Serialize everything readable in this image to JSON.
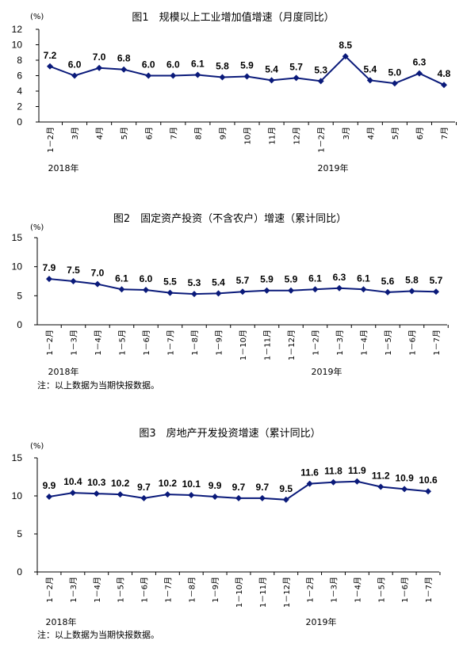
{
  "chart_data": [
    {
      "type": "line",
      "title": "图1　规模以上工业增加值增速（月度同比）",
      "unit": "(%)",
      "ylim": [
        0,
        12
      ],
      "yticks": [
        0,
        2,
        4,
        6,
        8,
        10,
        12
      ],
      "categories": [
        "1-2月",
        "3月",
        "4月",
        "5月",
        "6月",
        "7月",
        "8月",
        "9月",
        "10月",
        "11月",
        "12月",
        "1-2月",
        "3月",
        "4月",
        "5月",
        "6月",
        "7月"
      ],
      "years": [
        "2018年",
        "2019年"
      ],
      "series": [
        {
          "values": [
            7.2,
            6.0,
            7.0,
            6.8,
            6.0,
            6.0,
            6.1,
            5.8,
            5.9,
            5.4,
            5.7,
            5.3,
            8.5,
            5.4,
            5.0,
            6.3,
            4.8
          ]
        }
      ],
      "data_labels": [
        "7.2",
        "6.0",
        "7.0",
        "6.8",
        "6.0",
        "6.0",
        "6.1",
        "5.8",
        "5.9",
        "5.4",
        "5.7",
        "5.3",
        "8.5",
        "5.4",
        "5.0",
        "6.3",
        "4.8"
      ],
      "note": "",
      "grid": false
    },
    {
      "type": "line",
      "title": "图2　固定资产投资（不含农户）增速（累计同比）",
      "unit": "(%)",
      "ylim": [
        0,
        15
      ],
      "yticks": [
        0,
        5,
        10,
        15
      ],
      "categories": [
        "1-2月",
        "1-3月",
        "1-4月",
        "1-5月",
        "1-6月",
        "1-7月",
        "1-8月",
        "1-9月",
        "1-10月",
        "1-11月",
        "1-12月",
        "1-2月",
        "1-3月",
        "1-4月",
        "1-5月",
        "1-6月",
        "1-7月"
      ],
      "years": [
        "2018年",
        "2019年"
      ],
      "series": [
        {
          "values": [
            7.9,
            7.5,
            7.0,
            6.1,
            6.0,
            5.5,
            5.3,
            5.4,
            5.7,
            5.9,
            5.9,
            6.1,
            6.3,
            6.1,
            5.6,
            5.8,
            5.7
          ]
        }
      ],
      "data_labels": [
        "7.9",
        "7.5",
        "7.0",
        "6.1",
        "6.0",
        "5.5",
        "5.3",
        "5.4",
        "5.7",
        "5.9",
        "5.9",
        "6.1",
        "6.3",
        "6.1",
        "5.6",
        "5.8",
        "5.7"
      ],
      "note": "注：以上数据为当期快报数据。",
      "grid": false
    },
    {
      "type": "line",
      "title": "图3　房地产开发投资增速（累计同比）",
      "unit": "(%)",
      "ylim": [
        0,
        15
      ],
      "yticks": [
        0,
        5,
        10,
        15
      ],
      "categories": [
        "1-2月",
        "1-3月",
        "1-4月",
        "1-5月",
        "1-6月",
        "1-7月",
        "1-8月",
        "1-9月",
        "1-10月",
        "1-11月",
        "1-12月",
        "1-2月",
        "1-3月",
        "1-4月",
        "1-5月",
        "1-6月",
        "1-7月"
      ],
      "years": [
        "2018年",
        "2019年"
      ],
      "series": [
        {
          "values": [
            9.9,
            10.4,
            10.3,
            10.2,
            9.7,
            10.2,
            10.1,
            9.9,
            9.7,
            9.7,
            9.5,
            11.6,
            11.8,
            11.9,
            11.2,
            10.9,
            10.6
          ]
        }
      ],
      "data_labels": [
        "9.9",
        "10.4",
        "10.3",
        "10.2",
        "9.7",
        "10.2",
        "10.1",
        "9.9",
        "9.7",
        "9.7",
        "9.5",
        "11.6",
        "11.8",
        "11.9",
        "11.2",
        "10.9",
        "10.6"
      ],
      "note": "注：以上数据为当期快报数据。",
      "grid": false
    }
  ]
}
